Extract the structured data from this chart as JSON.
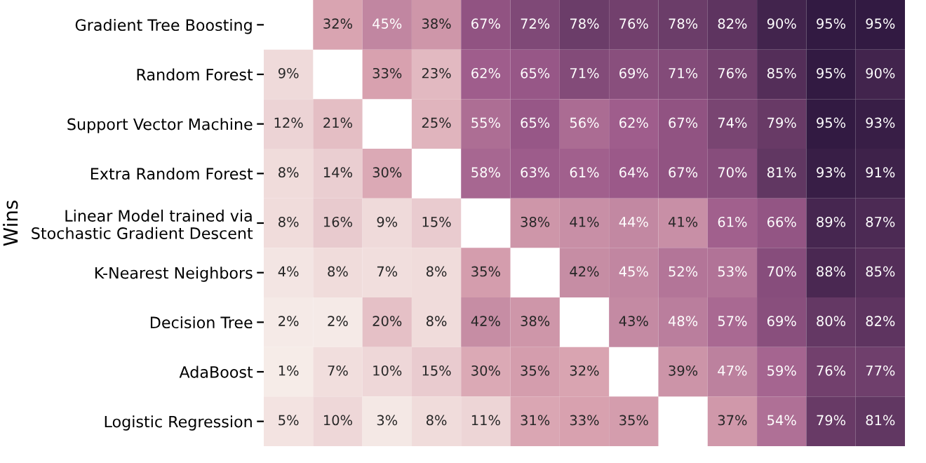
{
  "chart_data": {
    "type": "heatmap",
    "ylabel": "Wins",
    "categories": [
      null,
      null,
      null,
      null,
      null,
      null,
      null,
      null,
      null,
      null,
      null,
      null,
      null
    ],
    "y_categories": [
      "Gradient Tree Boosting",
      "Random Forest",
      "Support Vector Machine",
      "Extra Random Forest",
      "Linear Model trained via\nStochastic Gradient Descent",
      "K-Nearest Neighbors",
      "Decision Tree",
      "AdaBoost",
      "Logistic Regression"
    ],
    "cells": [
      [
        null,
        32,
        45,
        38,
        67,
        72,
        78,
        76,
        78,
        82,
        90,
        95,
        95
      ],
      [
        9,
        null,
        33,
        23,
        62,
        65,
        71,
        69,
        71,
        76,
        85,
        95,
        90
      ],
      [
        12,
        21,
        null,
        25,
        55,
        65,
        56,
        62,
        67,
        74,
        79,
        95,
        93
      ],
      [
        8,
        14,
        30,
        null,
        58,
        63,
        61,
        64,
        67,
        70,
        81,
        93,
        91
      ],
      [
        8,
        16,
        9,
        15,
        null,
        38,
        41,
        44,
        41,
        61,
        66,
        89,
        87
      ],
      [
        4,
        8,
        7,
        8,
        35,
        null,
        42,
        45,
        52,
        53,
        70,
        88,
        85
      ],
      [
        2,
        2,
        20,
        8,
        42,
        38,
        null,
        43,
        48,
        57,
        69,
        80,
        82
      ],
      [
        1,
        7,
        10,
        15,
        30,
        35,
        32,
        null,
        39,
        47,
        59,
        76,
        77
      ],
      [
        5,
        10,
        3,
        8,
        11,
        31,
        33,
        35,
        null,
        37,
        54,
        79,
        81
      ]
    ],
    "cell_labels": [
      [
        null,
        "32%",
        "45%",
        "38%",
        "67%",
        "72%",
        "78%",
        "76%",
        "78%",
        "82%",
        "90%",
        "95%",
        "95%"
      ],
      [
        "9%",
        null,
        "33%",
        "23%",
        "62%",
        "65%",
        "71%",
        "69%",
        "71%",
        "76%",
        "85%",
        "95%",
        "90%"
      ],
      [
        "12%",
        "21%",
        null,
        "25%",
        "55%",
        "65%",
        "56%",
        "62%",
        "67%",
        "74%",
        "79%",
        "95%",
        "93%"
      ],
      [
        "8%",
        "14%",
        "30%",
        null,
        "58%",
        "63%",
        "61%",
        "64%",
        "67%",
        "70%",
        "81%",
        "93%",
        "91%"
      ],
      [
        "8%",
        "16%",
        "9%",
        "15%",
        null,
        "38%",
        "41%",
        "44%",
        "41%",
        "61%",
        "66%",
        "89%",
        "87%"
      ],
      [
        "4%",
        "8%",
        "7%",
        "8%",
        "35%",
        null,
        "42%",
        "45%",
        "52%",
        "53%",
        "70%",
        "88%",
        "85%"
      ],
      [
        "2%",
        "2%",
        "20%",
        "8%",
        "42%",
        "38%",
        null,
        "43%",
        "48%",
        "57%",
        "69%",
        "80%",
        "82%"
      ],
      [
        "1%",
        "7%",
        "10%",
        "15%",
        "30%",
        "35%",
        "32%",
        null,
        "39%",
        "47%",
        "59%",
        "76%",
        "77%"
      ],
      [
        "5%",
        "10%",
        "3%",
        "8%",
        "11%",
        "31%",
        "33%",
        "35%",
        null,
        "37%",
        "54%",
        "79%",
        "81%"
      ]
    ],
    "colors": [
      "#f6ece8",
      "#d9a3b0",
      "#9c5a8a",
      "#321a42"
    ]
  }
}
